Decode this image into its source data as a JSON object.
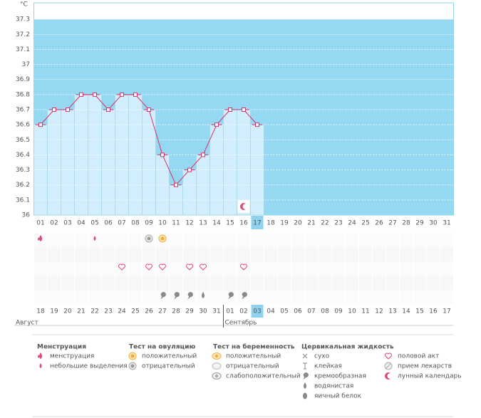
{
  "chart_data": {
    "type": "line",
    "ylabel": "°C",
    "ylim": [
      36,
      37.4
    ],
    "yticks": [
      36,
      36.1,
      36.2,
      36.3,
      36.4,
      36.5,
      36.6,
      36.7,
      36.8,
      36.9,
      37,
      37.1,
      37.2,
      37.3
    ],
    "grid": true,
    "color": "#d6336c",
    "categories": [
      "01",
      "02",
      "03",
      "04",
      "05",
      "06",
      "07",
      "08",
      "09",
      "10",
      "11",
      "12",
      "13",
      "14",
      "15",
      "16",
      "17",
      "18",
      "19",
      "20",
      "21",
      "22",
      "23",
      "24",
      "25",
      "26",
      "27",
      "28",
      "29",
      "30",
      "31"
    ],
    "values": [
      36.6,
      36.7,
      36.7,
      36.8,
      36.8,
      36.7,
      36.8,
      36.8,
      36.7,
      36.4,
      36.2,
      36.3,
      36.4,
      36.6,
      36.7,
      36.7,
      36.6,
      null,
      null,
      null,
      null,
      null,
      null,
      null,
      null,
      null,
      null,
      null,
      null,
      null,
      null
    ],
    "dates": [
      "18",
      "19",
      "20",
      "21",
      "22",
      "23",
      "24",
      "25",
      "26",
      "27",
      "28",
      "29",
      "30",
      "31",
      "01",
      "02",
      "03",
      "04",
      "05",
      "06",
      "07",
      "08",
      "09",
      "10",
      "11",
      "12",
      "13",
      "14",
      "15",
      "16",
      "17"
    ],
    "weekend": [
      true,
      false,
      false,
      false,
      false,
      false,
      true,
      true,
      false,
      false,
      false,
      false,
      false,
      true,
      true,
      false,
      false,
      false,
      false,
      false,
      true,
      true,
      false,
      false,
      false,
      false,
      false,
      true,
      true,
      false,
      false
    ],
    "selected_index": 16,
    "months": [
      {
        "name": "Август",
        "start": 0
      },
      {
        "name": "Сентябрь",
        "start": 14
      }
    ],
    "symbols": [
      {
        "day": "01",
        "icon": "menstruation"
      },
      {
        "day": "05",
        "icon": "spotting"
      },
      {
        "day": "09",
        "icon": "ov_negative"
      },
      {
        "day": "10",
        "icon": "ov_positive"
      },
      {
        "day": "07",
        "icon": "intercourse"
      },
      {
        "day": "09",
        "icon": "intercourse"
      },
      {
        "day": "10",
        "icon": "intercourse"
      },
      {
        "day": "12",
        "icon": "intercourse"
      },
      {
        "day": "13",
        "icon": "intercourse"
      },
      {
        "day": "16",
        "icon": "intercourse"
      },
      {
        "day": "10",
        "icon": "creamy"
      },
      {
        "day": "11",
        "icon": "creamy"
      },
      {
        "day": "12",
        "icon": "creamy"
      },
      {
        "day": "13",
        "icon": "watery"
      },
      {
        "day": "15",
        "icon": "creamy"
      },
      {
        "day": "16",
        "icon": "creamy"
      },
      {
        "day": "16",
        "icon": "lunar"
      }
    ],
    "legend": [
      {
        "title": "Менструация",
        "items": [
          {
            "icon": "menstruation",
            "label": "менструация"
          },
          {
            "icon": "spotting",
            "label": "небольшие выделения"
          }
        ]
      },
      {
        "title": "Тест на овуляцию",
        "items": [
          {
            "icon": "ov_positive",
            "label": "положительный"
          },
          {
            "icon": "ov_negative",
            "label": "отрицательный"
          }
        ]
      },
      {
        "title": "Тест на беременность",
        "items": [
          {
            "icon": "pr_positive",
            "label": "положительный"
          },
          {
            "icon": "pr_negative",
            "label": "отрицательный"
          },
          {
            "icon": "pr_weak",
            "label": "слабоположительный"
          }
        ]
      },
      {
        "title": "Цервикальная жидкость",
        "items": [
          {
            "icon": "dry",
            "label": "сухо"
          },
          {
            "icon": "sticky",
            "label": "клейкая"
          },
          {
            "icon": "creamy",
            "label": "кремообразная"
          },
          {
            "icon": "watery",
            "label": "водянистая"
          },
          {
            "icon": "eggwhite",
            "label": "яичный белок"
          }
        ]
      },
      {
        "items": [
          {
            "icon": "intercourse",
            "label": "половой акт"
          },
          {
            "icon": "medication",
            "label": "прием лекарств"
          },
          {
            "icon": "lunar",
            "label": "лунный календарь"
          }
        ]
      }
    ]
  }
}
